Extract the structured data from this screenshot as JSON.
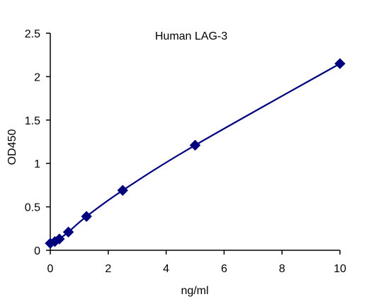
{
  "chart_data": {
    "type": "scatter",
    "title": "Human LAG-3",
    "xlabel": "ng/ml",
    "ylabel": "OD450",
    "xlim": [
      0,
      10
    ],
    "ylim": [
      0,
      2.5
    ],
    "xticks": [
      "0",
      "2",
      "4",
      "6",
      "8",
      "10"
    ],
    "yticks": [
      "0",
      "0.5",
      "1",
      "1.5",
      "2",
      "2.5"
    ],
    "xtick_values": [
      0,
      2,
      4,
      6,
      8,
      10
    ],
    "ytick_values": [
      0,
      0.5,
      1,
      1.5,
      2,
      2.5
    ],
    "grid": false,
    "series": [
      {
        "x": [
          0,
          0.156,
          0.313,
          0.625,
          1.25,
          2.5,
          5,
          10
        ],
        "y": [
          0.08,
          0.1,
          0.13,
          0.21,
          0.39,
          0.69,
          1.21,
          2.15
        ],
        "fit": "smooth-curve"
      }
    ],
    "colors": {
      "series": "#00007F",
      "axis": "#000000"
    }
  }
}
